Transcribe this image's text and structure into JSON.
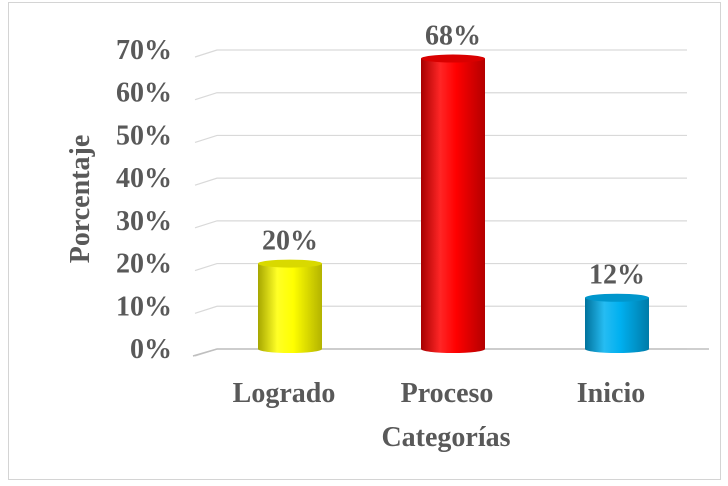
{
  "chart_data": {
    "type": "bar",
    "categories": [
      "Logrado",
      "Proceso",
      "Inicio"
    ],
    "values": [
      20,
      68,
      12
    ],
    "data_labels": [
      "20%",
      "68%",
      "12%"
    ],
    "colors": [
      "#ffff00",
      "#ff0000",
      "#00b0f0"
    ],
    "title": "",
    "xlabel": "Categorías",
    "ylabel": "Porcentaje",
    "ylim": [
      0,
      70
    ],
    "yticks": [
      0,
      10,
      20,
      30,
      40,
      50,
      60,
      70
    ],
    "ytick_labels": [
      "0%",
      "10%",
      "20%",
      "30%",
      "40%",
      "50%",
      "60%",
      "70%"
    ],
    "grid": true,
    "legend": "none"
  }
}
